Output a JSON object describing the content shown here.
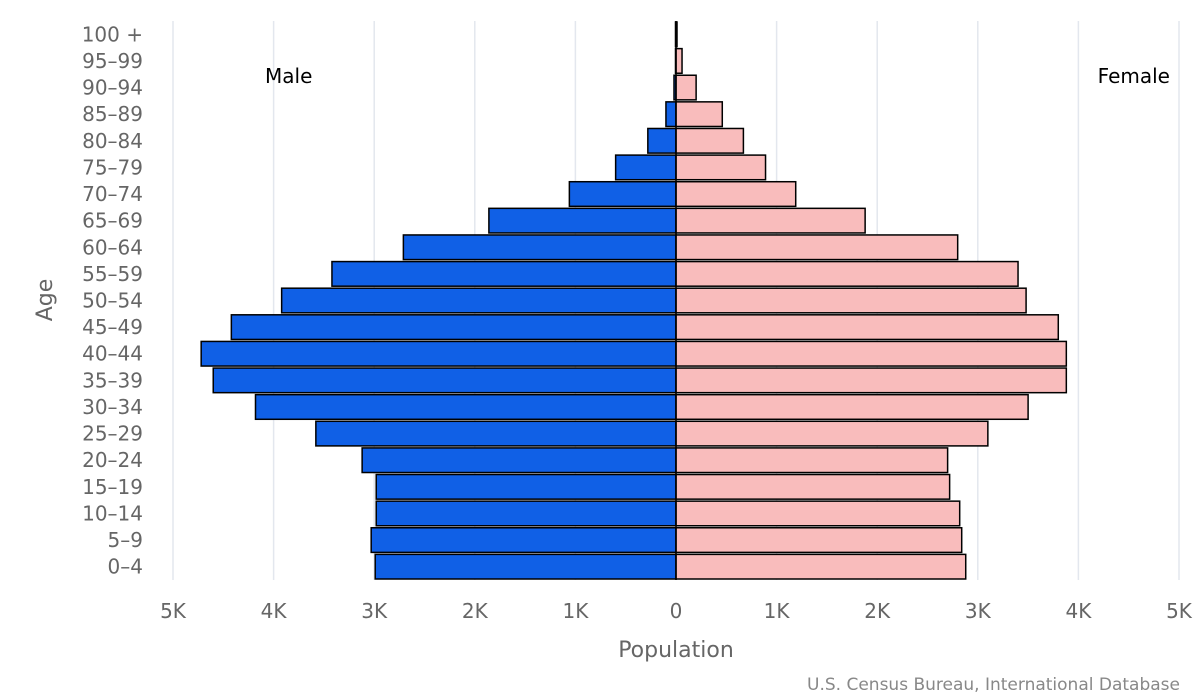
{
  "chart_data": {
    "type": "bar",
    "orientation": "horizontal-population-pyramid",
    "categories": [
      "0-4",
      "5-9",
      "10-14",
      "15-19",
      "20-24",
      "25-29",
      "30-34",
      "35-39",
      "40-44",
      "45-49",
      "50-54",
      "55-59",
      "60-64",
      "65-69",
      "70-74",
      "75-79",
      "80-84",
      "85-89",
      "90-94",
      "95-99",
      "100 +"
    ],
    "series": [
      {
        "name": "Male",
        "color": "#1060e6",
        "values": [
          2990,
          3030,
          2980,
          2980,
          3120,
          3580,
          4180,
          4600,
          4720,
          4420,
          3920,
          3420,
          2710,
          1860,
          1060,
          600,
          280,
          100,
          20,
          5,
          5
        ]
      },
      {
        "name": "Female",
        "color": "#f9bcbc",
        "values": [
          2880,
          2840,
          2820,
          2720,
          2700,
          3100,
          3500,
          3880,
          3880,
          3800,
          3480,
          3400,
          2800,
          1880,
          1190,
          890,
          670,
          460,
          200,
          60,
          10
        ]
      }
    ],
    "x_tick_labels": [
      "5K",
      "4K",
      "3K",
      "2K",
      "1K",
      "0",
      "1K",
      "2K",
      "3K",
      "4K",
      "5K"
    ],
    "x_tick_values": [
      -5000,
      -4000,
      -3000,
      -2000,
      -1000,
      0,
      1000,
      2000,
      3000,
      4000,
      5000
    ],
    "xlim": [
      -5000,
      5000
    ],
    "xlabel": "Population",
    "ylabel": "Age",
    "left_label": "Male",
    "right_label": "Female",
    "credit": "U.S. Census Bureau, International Database",
    "grid": true
  }
}
